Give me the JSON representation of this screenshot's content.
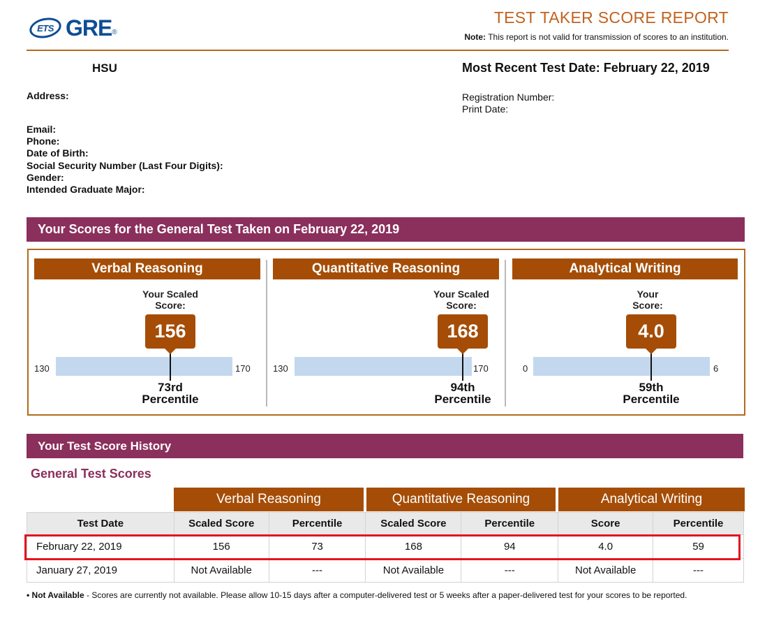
{
  "header": {
    "logo_ets": "ETS",
    "logo_gre": "GRE",
    "title": "TEST TAKER SCORE REPORT",
    "note_label": "Note:",
    "note_text": "This report is not valid for transmission of scores to an institution."
  },
  "candidate": {
    "name": "HSU",
    "recent_test_date": "Most Recent Test Date: February 22, 2019",
    "address_label": "Address:",
    "registration_label": "Registration Number:",
    "print_date_label": "Print Date:",
    "email_label": "Email:",
    "phone_label": "Phone:",
    "dob_label": "Date of Birth:",
    "ssn_label": "Social Security Number (Last Four Digits):",
    "gender_label": "Gender:",
    "major_label": "Intended Graduate Major:"
  },
  "scores_section": {
    "title": "Your Scores for the General Test Taken on February 22, 2019",
    "panels": [
      {
        "name": "Verbal Reasoning",
        "label_line1": "Your Scaled",
        "label_line2": "Score:",
        "score": "156",
        "score_value": 156,
        "min": "130",
        "max": "170",
        "min_value": 130,
        "max_value": 170,
        "percentile_line1": "73rd",
        "percentile_line2": "Percentile"
      },
      {
        "name": "Quantitative Reasoning",
        "label_line1": "Your Scaled",
        "label_line2": "Score:",
        "score": "168",
        "score_value": 168,
        "min": "130",
        "max": "170",
        "min_value": 130,
        "max_value": 170,
        "percentile_line1": "94th",
        "percentile_line2": "Percentile"
      },
      {
        "name": "Analytical Writing",
        "label_line1": "Your",
        "label_line2": "Score:",
        "score": "4.0",
        "score_value": 4.0,
        "min": "0",
        "max": "6",
        "min_value": 0,
        "max_value": 6,
        "percentile_line1": "59th",
        "percentile_line2": "Percentile"
      }
    ]
  },
  "history": {
    "title": "Your Test Score History",
    "subtitle": "General Test Scores",
    "groups": [
      "Verbal Reasoning",
      "Quantitative Reasoning",
      "Analytical Writing"
    ],
    "columns": [
      "Test Date",
      "Scaled Score",
      "Percentile",
      "Scaled Score",
      "Percentile",
      "Score",
      "Percentile"
    ],
    "rows": [
      [
        "February 22, 2019",
        "156",
        "73",
        "168",
        "94",
        "4.0",
        "59"
      ],
      [
        "January 27, 2019",
        "Not Available",
        "---",
        "Not Available",
        "---",
        "Not Available",
        "---"
      ]
    ]
  },
  "footnote": {
    "label": "• Not Available",
    "text": " - Scores are currently not available. Please allow 10-15 days after a computer-delivered test or 5 weeks after a paper-delivered test for your scores to be reported."
  },
  "colors": {
    "banner": "#8b2f5c",
    "brown": "#a54d06",
    "title_orange": "#c1621e",
    "bar": "#c3d8ee",
    "highlight": "#e3141f",
    "ets_blue": "#0e4d95"
  }
}
